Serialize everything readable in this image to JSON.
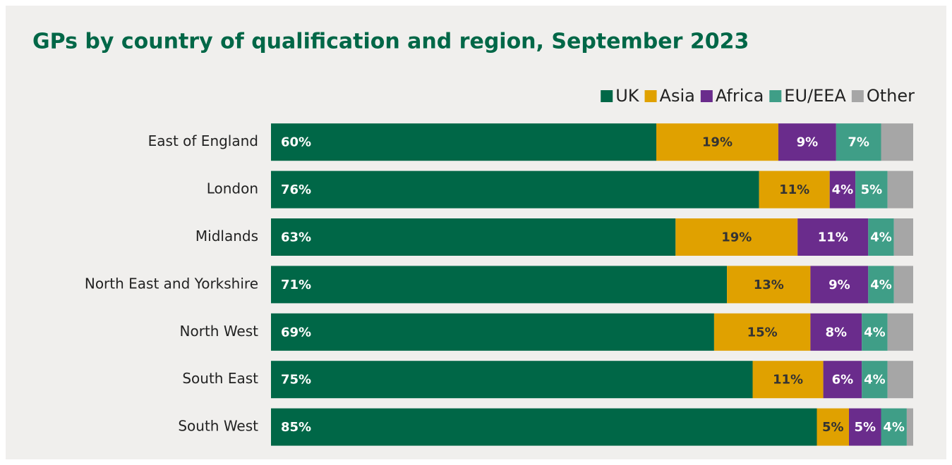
{
  "chart_data": {
    "type": "stacked-bar-horizontal",
    "title": "GPs by country of qualification and region, September 2023",
    "categories": [
      "East of England",
      "London",
      "Midlands",
      "North East and Yorkshire",
      "North West",
      "South East",
      "South West"
    ],
    "xlim": [
      0,
      100
    ],
    "legend": "top-right",
    "series": [
      {
        "name": "UK",
        "color": "#006747",
        "label_color": "#ffffff",
        "values": [
          60,
          76,
          63,
          71,
          69,
          75,
          85
        ],
        "value_labels": [
          "60%",
          "76%",
          "63%",
          "71%",
          "69%",
          "75%",
          "85%"
        ]
      },
      {
        "name": "Asia",
        "color": "#e0a100",
        "label_color": "#333333",
        "values": [
          19,
          11,
          19,
          13,
          15,
          11,
          5
        ],
        "value_labels": [
          "19%",
          "11%",
          "19%",
          "13%",
          "15%",
          "11%",
          "5%"
        ]
      },
      {
        "name": "Africa",
        "color": "#6a2c8c",
        "label_color": "#ffffff",
        "values": [
          9,
          4,
          11,
          9,
          8,
          6,
          5
        ],
        "value_labels": [
          "9%",
          "4%",
          "11%",
          "9%",
          "8%",
          "6%",
          "5%"
        ]
      },
      {
        "name": "EU/EEA",
        "color": "#3f9e87",
        "label_color": "#ffffff",
        "values": [
          7,
          5,
          4,
          4,
          4,
          4,
          4
        ],
        "value_labels": [
          "7%",
          "5%",
          "4%",
          "4%",
          "4%",
          "4%",
          "4%"
        ]
      },
      {
        "name": "Other",
        "color": "#a6a6a6",
        "values": [
          5,
          4,
          3,
          3,
          4,
          4,
          1
        ]
      }
    ]
  }
}
